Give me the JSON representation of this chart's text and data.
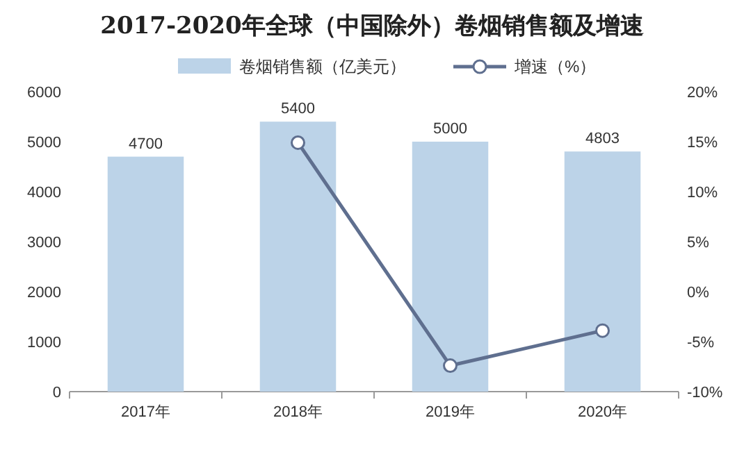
{
  "chart_data": {
    "type": "bar",
    "title": "2017-2020年全球（中国除外）卷烟销售额及增速",
    "categories": [
      "2017年",
      "2018年",
      "2019年",
      "2020年"
    ],
    "series": [
      {
        "name": "卷烟销售额（亿美元）",
        "color": "#bcd3e8",
        "values": [
          4700,
          5400,
          5000,
          4803
        ],
        "value_labels": [
          "4700",
          "5400",
          "5000",
          "4803"
        ]
      },
      {
        "name": "增速（%）",
        "type": "line",
        "axis": "y2",
        "color": "#5f6f8f",
        "values": [
          null,
          14.9,
          -7.4,
          -3.9
        ]
      }
    ],
    "ylim": [
      0,
      6000
    ],
    "yticks": [
      0,
      1000,
      2000,
      3000,
      4000,
      5000,
      6000
    ],
    "y2lim": [
      -10,
      20
    ],
    "y2ticks": [
      {
        "value": -10,
        "label": "-10%"
      },
      {
        "value": -5,
        "label": "-5%"
      },
      {
        "value": 0,
        "label": "0%"
      },
      {
        "value": 5,
        "label": "5%"
      },
      {
        "value": 10,
        "label": "10%"
      },
      {
        "value": 15,
        "label": "15%"
      },
      {
        "value": 20,
        "label": "20%"
      }
    ],
    "legend": "top",
    "marker": "circle",
    "line_style": "solid"
  }
}
